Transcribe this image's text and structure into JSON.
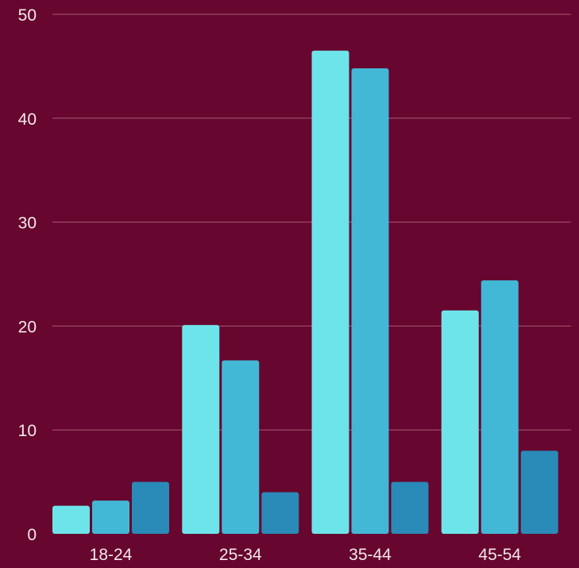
{
  "chart_data": {
    "type": "bar",
    "categories": [
      "18-24",
      "25-34",
      "35-44",
      "45-54"
    ],
    "series": [
      {
        "values": [
          2.7,
          20.1,
          46.5,
          21.5
        ],
        "color": "#6ce4ea"
      },
      {
        "values": [
          3.2,
          16.7,
          44.8,
          24.4
        ],
        "color": "#42b8d6"
      },
      {
        "values": [
          5.0,
          4.0,
          5.0,
          8.0
        ],
        "color": "#2a8ab8"
      }
    ],
    "ylim": [
      0,
      50
    ],
    "yticks": [
      "0",
      "10",
      "20",
      "30",
      "40",
      "50"
    ],
    "grid": true,
    "legend": "none",
    "background": "#67062e",
    "text_color": "#f3e8ec"
  }
}
